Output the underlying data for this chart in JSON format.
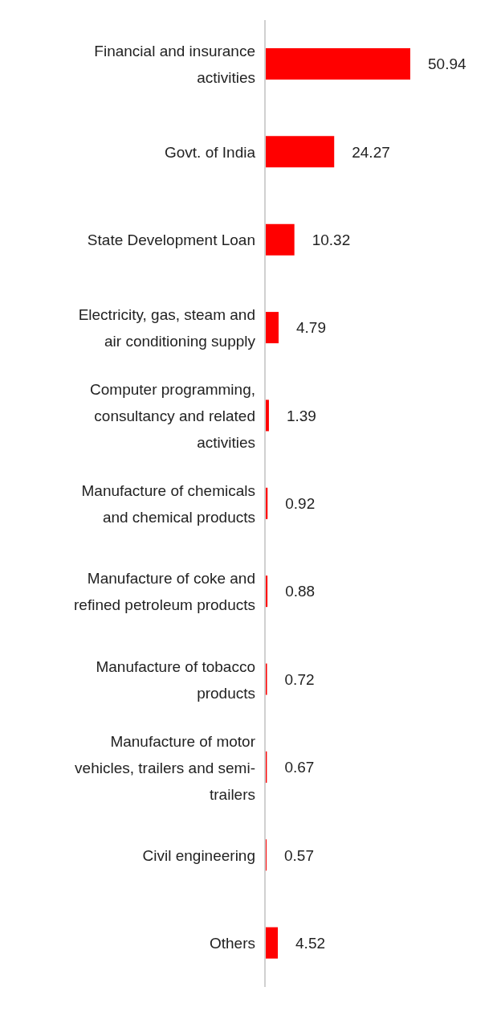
{
  "chart_data": {
    "type": "bar",
    "orientation": "horizontal",
    "categories": [
      "Financial and insurance activities",
      "Govt. of India",
      "State Development Loan",
      "Electricity, gas, steam and air conditioning supply",
      "Computer programming, consultancy and related activities",
      "Manufacture of chemicals and chemical products",
      "Manufacture of coke and refined petroleum products",
      "Manufacture of tobacco products",
      "Manufacture of motor vehicles, trailers and semi-trailers",
      "Civil engineering",
      "Others"
    ],
    "values": [
      50.94,
      24.27,
      10.32,
      4.79,
      1.39,
      0.92,
      0.88,
      0.72,
      0.67,
      0.57,
      4.52
    ],
    "color": "#ff0000",
    "data_labels": true
  }
}
